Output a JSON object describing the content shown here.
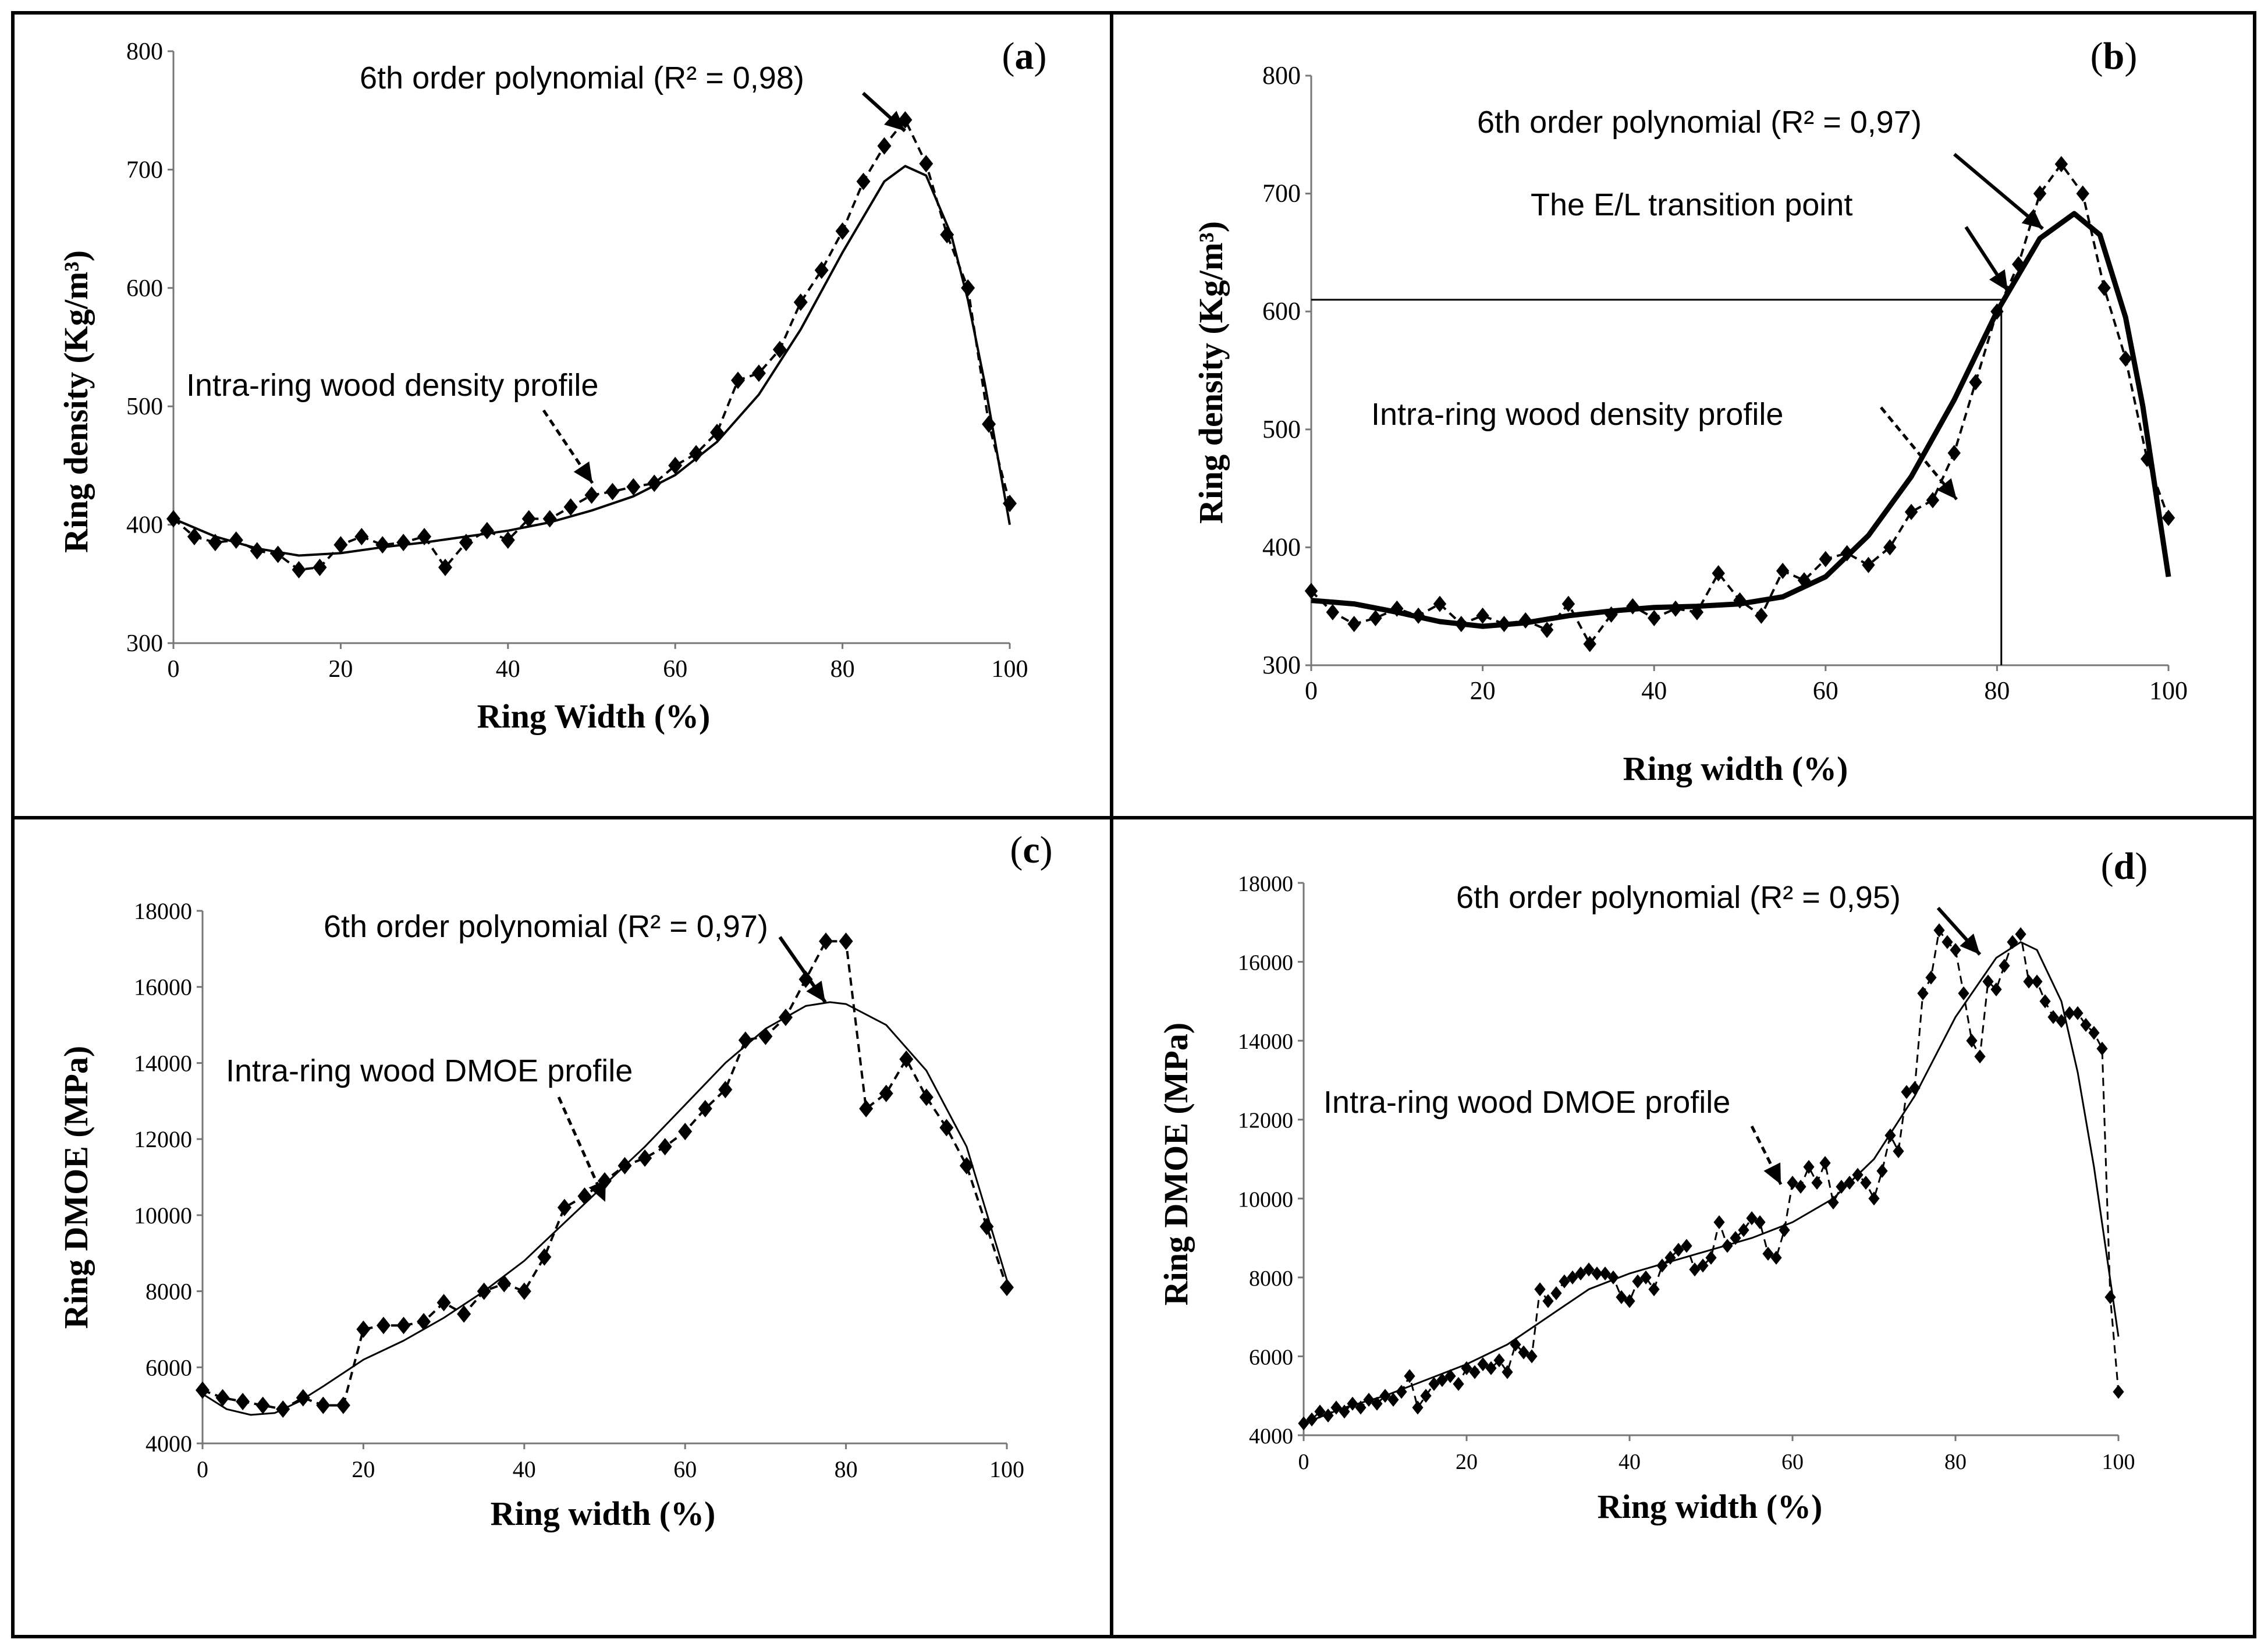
{
  "chart_data": [
    {
      "panel": "(a)",
      "panel_letter": "a",
      "type": "line",
      "xlabel": "Ring Width (%)",
      "ylabel": "Ring density (Kg/m³)",
      "xlim": [
        0,
        100
      ],
      "ylim": [
        300,
        800
      ],
      "xticks": [
        0,
        20,
        40,
        60,
        80,
        100
      ],
      "yticks": [
        300,
        400,
        500,
        600,
        700,
        800
      ],
      "fit_label": "6th order polynomial (R² = 0,98)",
      "profile_label": "Intra-ring wood density profile",
      "series": [
        {
          "name": "Intra-ring wood density profile",
          "style": "dashed-markers",
          "x": [
            0,
            2.5,
            5,
            7.5,
            10,
            12.5,
            15,
            17.5,
            20,
            22.5,
            25,
            27.5,
            30,
            32.5,
            35,
            37.5,
            40,
            42.5,
            45,
            47.5,
            50,
            52.5,
            55,
            57.5,
            60,
            62.5,
            65,
            67.5,
            70,
            72.5,
            75,
            77.5,
            80,
            82.5,
            85,
            87.5,
            90,
            92.5,
            95,
            97.5,
            100
          ],
          "values": [
            405,
            390,
            385,
            387,
            378,
            375,
            362,
            364,
            383,
            390,
            383,
            385,
            390,
            364,
            385,
            395,
            387,
            405,
            405,
            415,
            425,
            428,
            432,
            435,
            450,
            460,
            478,
            522,
            528,
            548,
            588,
            615,
            648,
            690,
            720,
            742,
            705,
            645,
            600,
            485,
            418
          ]
        },
        {
          "name": "6th order polynomial",
          "style": "solid",
          "x": [
            0,
            5,
            10,
            15,
            20,
            25,
            30,
            35,
            40,
            45,
            50,
            55,
            60,
            65,
            70,
            75,
            80,
            85,
            87.5,
            90,
            93,
            95,
            97,
            100
          ],
          "values": [
            405,
            390,
            380,
            374,
            376,
            381,
            385,
            390,
            395,
            402,
            412,
            424,
            442,
            470,
            510,
            565,
            630,
            690,
            703,
            695,
            645,
            590,
            520,
            400
          ]
        }
      ]
    },
    {
      "panel": "(b)",
      "panel_letter": "b",
      "type": "line",
      "xlabel": "Ring width (%)",
      "ylabel": "Ring density (Kg/m³)",
      "xlim": [
        0,
        100
      ],
      "ylim": [
        300,
        800
      ],
      "xticks": [
        0,
        20,
        40,
        60,
        80,
        100
      ],
      "yticks": [
        300,
        400,
        500,
        600,
        700,
        800
      ],
      "fit_label": "6th order polynomial (R² = 0,97)",
      "profile_label": "Intra-ring wood density profile",
      "transition_label": "The E/L transition point",
      "transition_point": {
        "x": 80.5,
        "y": 610
      },
      "series": [
        {
          "name": "Intra-ring wood density profile",
          "style": "dashed-markers",
          "x": [
            0,
            2.5,
            5,
            7.5,
            10,
            12.5,
            15,
            17.5,
            20,
            22.5,
            25,
            27.5,
            30,
            32.5,
            35,
            37.5,
            40,
            42.5,
            45,
            47.5,
            50,
            52.5,
            55,
            57.5,
            60,
            62.5,
            65,
            67.5,
            70,
            72.5,
            75,
            77.5,
            80,
            82.5,
            85,
            87.5,
            90,
            92.5,
            95,
            97.5,
            100
          ],
          "values": [
            363,
            345,
            335,
            340,
            348,
            342,
            352,
            335,
            342,
            335,
            338,
            330,
            352,
            318,
            343,
            350,
            340,
            348,
            345,
            378,
            355,
            342,
            380,
            372,
            390,
            395,
            385,
            400,
            430,
            440,
            480,
            540,
            600,
            640,
            700,
            725,
            700,
            620,
            560,
            475,
            425
          ]
        },
        {
          "name": "6th order polynomial",
          "style": "solid-bold",
          "x": [
            0,
            5,
            10,
            15,
            20,
            25,
            30,
            35,
            40,
            45,
            50,
            55,
            60,
            65,
            70,
            75,
            80,
            85,
            89,
            92,
            95,
            97,
            100
          ],
          "values": [
            355,
            352,
            345,
            337,
            333,
            336,
            342,
            346,
            349,
            350,
            352,
            358,
            375,
            410,
            460,
            525,
            600,
            662,
            683,
            665,
            595,
            520,
            375
          ]
        }
      ]
    },
    {
      "panel": "(c)",
      "panel_letter": "c",
      "type": "line",
      "xlabel": "Ring width (%)",
      "ylabel": "Ring DMOE (MPa)",
      "xlim": [
        0,
        100
      ],
      "ylim": [
        4000,
        18000
      ],
      "xticks": [
        0,
        20,
        40,
        60,
        80,
        100
      ],
      "yticks": [
        4000,
        6000,
        8000,
        10000,
        12000,
        14000,
        16000,
        18000
      ],
      "fit_label": "6th order polynomial (R² = 0,97)",
      "profile_label": "Intra-ring wood DMOE profile",
      "series": [
        {
          "name": "Intra-ring wood DMOE profile",
          "style": "dashed-markers",
          "x": [
            0,
            2.5,
            5,
            7.5,
            10,
            12.5,
            15,
            17.5,
            20,
            22.5,
            25,
            27.5,
            30,
            32.5,
            35,
            37.5,
            40,
            42.5,
            45,
            47.5,
            50,
            52.5,
            55,
            57.5,
            60,
            62.5,
            65,
            67.5,
            70,
            72.5,
            75,
            77.5,
            80,
            82.5,
            85,
            87.5,
            90,
            92.5,
            95,
            97.5,
            100
          ],
          "values": [
            5400,
            5200,
            5100,
            5000,
            4900,
            5200,
            5000,
            5000,
            7000,
            7100,
            7100,
            7200,
            7700,
            7400,
            8000,
            8200,
            8000,
            8900,
            10200,
            10500,
            10900,
            11300,
            11500,
            11800,
            12200,
            12800,
            13300,
            14600,
            14700,
            15200,
            16200,
            17200,
            17200,
            12800,
            13200,
            14100,
            13100,
            12300,
            11300,
            9700,
            8100
          ]
        },
        {
          "name": "6th order polynomial",
          "style": "solid",
          "x": [
            0,
            3,
            6,
            9,
            12,
            15,
            20,
            25,
            30,
            35,
            40,
            45,
            50,
            55,
            60,
            65,
            70,
            75,
            78,
            80,
            85,
            90,
            95,
            100
          ],
          "values": [
            5300,
            4900,
            4750,
            4800,
            5100,
            5500,
            6200,
            6700,
            7300,
            8000,
            8800,
            9800,
            10800,
            11800,
            12900,
            14000,
            14900,
            15500,
            15600,
            15550,
            15000,
            13800,
            11800,
            8300
          ]
        }
      ]
    },
    {
      "panel": "(d)",
      "panel_letter": "d",
      "type": "line",
      "xlabel": "Ring width (%)",
      "ylabel": "Ring DMOE (MPa)",
      "xlim": [
        0,
        100
      ],
      "ylim": [
        4000,
        18000
      ],
      "xticks": [
        0,
        20,
        40,
        60,
        80,
        100
      ],
      "yticks": [
        4000,
        6000,
        8000,
        10000,
        12000,
        14000,
        16000,
        18000
      ],
      "fit_label": "6th order polynomial (R² = 0,95)",
      "profile_label": "Intra-ring wood DMOE profile",
      "series": [
        {
          "name": "Intra-ring wood DMOE profile",
          "style": "dashed-markers",
          "x": [
            0,
            1,
            2,
            3,
            4,
            5,
            6,
            7,
            8,
            9,
            10,
            11,
            12,
            13,
            14,
            15,
            16,
            17,
            18,
            19,
            20,
            21,
            22,
            23,
            24,
            25,
            26,
            27,
            28,
            29,
            30,
            31,
            32,
            33,
            34,
            35,
            36,
            37,
            38,
            39,
            40,
            41,
            42,
            43,
            44,
            45,
            46,
            47,
            48,
            49,
            50,
            51,
            52,
            53,
            54,
            55,
            56,
            57,
            58,
            59,
            60,
            61,
            62,
            63,
            64,
            65,
            66,
            67,
            68,
            69,
            70,
            71,
            72,
            73,
            74,
            75,
            76,
            77,
            78,
            79,
            80,
            81,
            82,
            83,
            84,
            85,
            86,
            87,
            88,
            89,
            90,
            91,
            92,
            93,
            94,
            95,
            96,
            97,
            98,
            99,
            100
          ],
          "values": [
            4300,
            4400,
            4600,
            4500,
            4700,
            4600,
            4800,
            4700,
            4900,
            4800,
            5000,
            4900,
            5100,
            5500,
            4700,
            5000,
            5300,
            5400,
            5500,
            5300,
            5700,
            5600,
            5800,
            5700,
            5900,
            5600,
            6300,
            6100,
            6000,
            7700,
            7400,
            7600,
            7900,
            8000,
            8100,
            8200,
            8100,
            8100,
            8000,
            7500,
            7400,
            7900,
            8000,
            7700,
            8300,
            8500,
            8700,
            8800,
            8200,
            8300,
            8500,
            9400,
            8800,
            9000,
            9200,
            9500,
            9400,
            8600,
            8500,
            9200,
            10400,
            10300,
            10800,
            10400,
            10900,
            9900,
            10300,
            10400,
            10600,
            10400,
            10000,
            10700,
            11600,
            11200,
            12700,
            12800,
            15200,
            15600,
            16800,
            16500,
            16300,
            15200,
            14000,
            13600,
            15500,
            15300,
            15900,
            16500,
            16700,
            15500,
            15500,
            15000,
            14600,
            14500,
            14700,
            14700,
            14400,
            14200,
            13800,
            7500,
            5100
          ]
        },
        {
          "name": "6th order polynomial",
          "style": "solid",
          "x": [
            0,
            5,
            10,
            15,
            20,
            25,
            30,
            35,
            40,
            45,
            50,
            55,
            60,
            65,
            70,
            75,
            80,
            85,
            88,
            90,
            93,
            95,
            97,
            100
          ],
          "values": [
            4300,
            4700,
            5000,
            5400,
            5800,
            6300,
            7000,
            7700,
            8100,
            8400,
            8700,
            9000,
            9400,
            10000,
            11000,
            12600,
            14600,
            16100,
            16500,
            16300,
            15000,
            13200,
            10800,
            6500
          ]
        }
      ]
    }
  ]
}
